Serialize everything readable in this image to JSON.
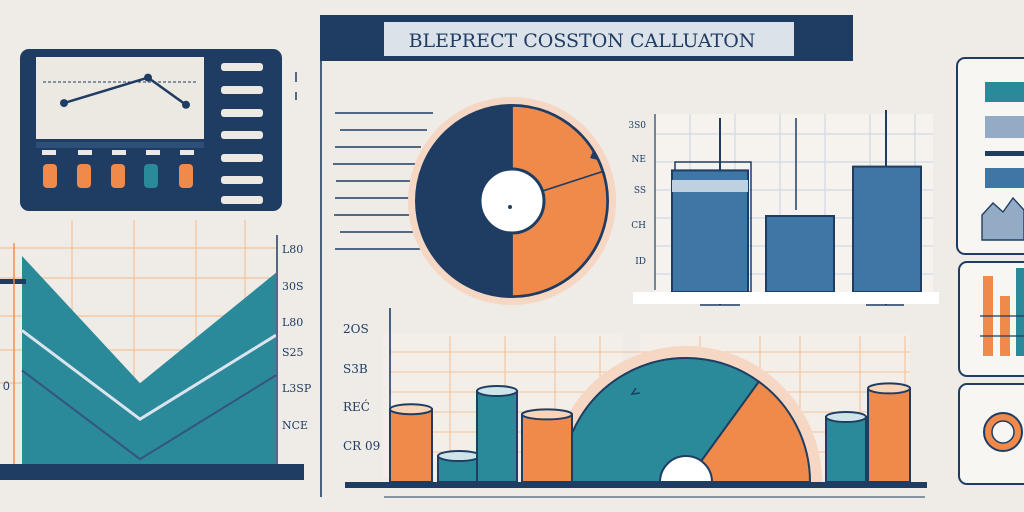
{
  "title": "BLEPRECT COSSTON CALLUATON",
  "colors": {
    "navy": "#1f3d63",
    "teal": "#2a8a99",
    "blue": "#3e76a5",
    "orange": "#ef8a4a",
    "cream": "#efebe6",
    "grid_orange": "#f3c39b",
    "grid_blue": "#c7d3e0",
    "light_blue": "#93abc4"
  },
  "chart_data": [
    {
      "type": "line",
      "title": "",
      "values": [
        1.7,
        3.2,
        1.6
      ],
      "icons": [
        "orange-indicator",
        "orange-indicator",
        "orange-indicator",
        "teal-indicator",
        "orange-indicator"
      ]
    },
    {
      "type": "pie",
      "title": "",
      "values": [
        20,
        30,
        35,
        15
      ],
      "series_colors": [
        "orange",
        "orange",
        "navy",
        "navy"
      ]
    },
    {
      "type": "bar",
      "title": "",
      "y_tick_labels": [
        "3S0",
        "NE",
        "SS",
        "CH",
        "ID"
      ],
      "values": [
        3.2,
        2.0,
        3.3
      ]
    },
    {
      "type": "area",
      "title": "",
      "y_tick_labels": [
        "L80",
        "30S",
        "L80",
        "S25",
        "L3SP",
        "NCE"
      ],
      "series": [
        {
          "values": [
            8.5,
            3.2,
            7.8
          ]
        },
        {
          "values": [
            5.4,
            1.7,
            5.2
          ]
        }
      ]
    },
    {
      "type": "bar",
      "title": "",
      "y_tick_labels": [
        "2OS",
        "S3B",
        "REĆ",
        "CR 09"
      ],
      "values": [
        2.8,
        1.0,
        3.5,
        2.6,
        2.5,
        3.6
      ]
    },
    {
      "type": "pie",
      "title": "",
      "values": [
        30,
        70
      ],
      "series_colors": [
        "orange",
        "teal"
      ]
    }
  ]
}
